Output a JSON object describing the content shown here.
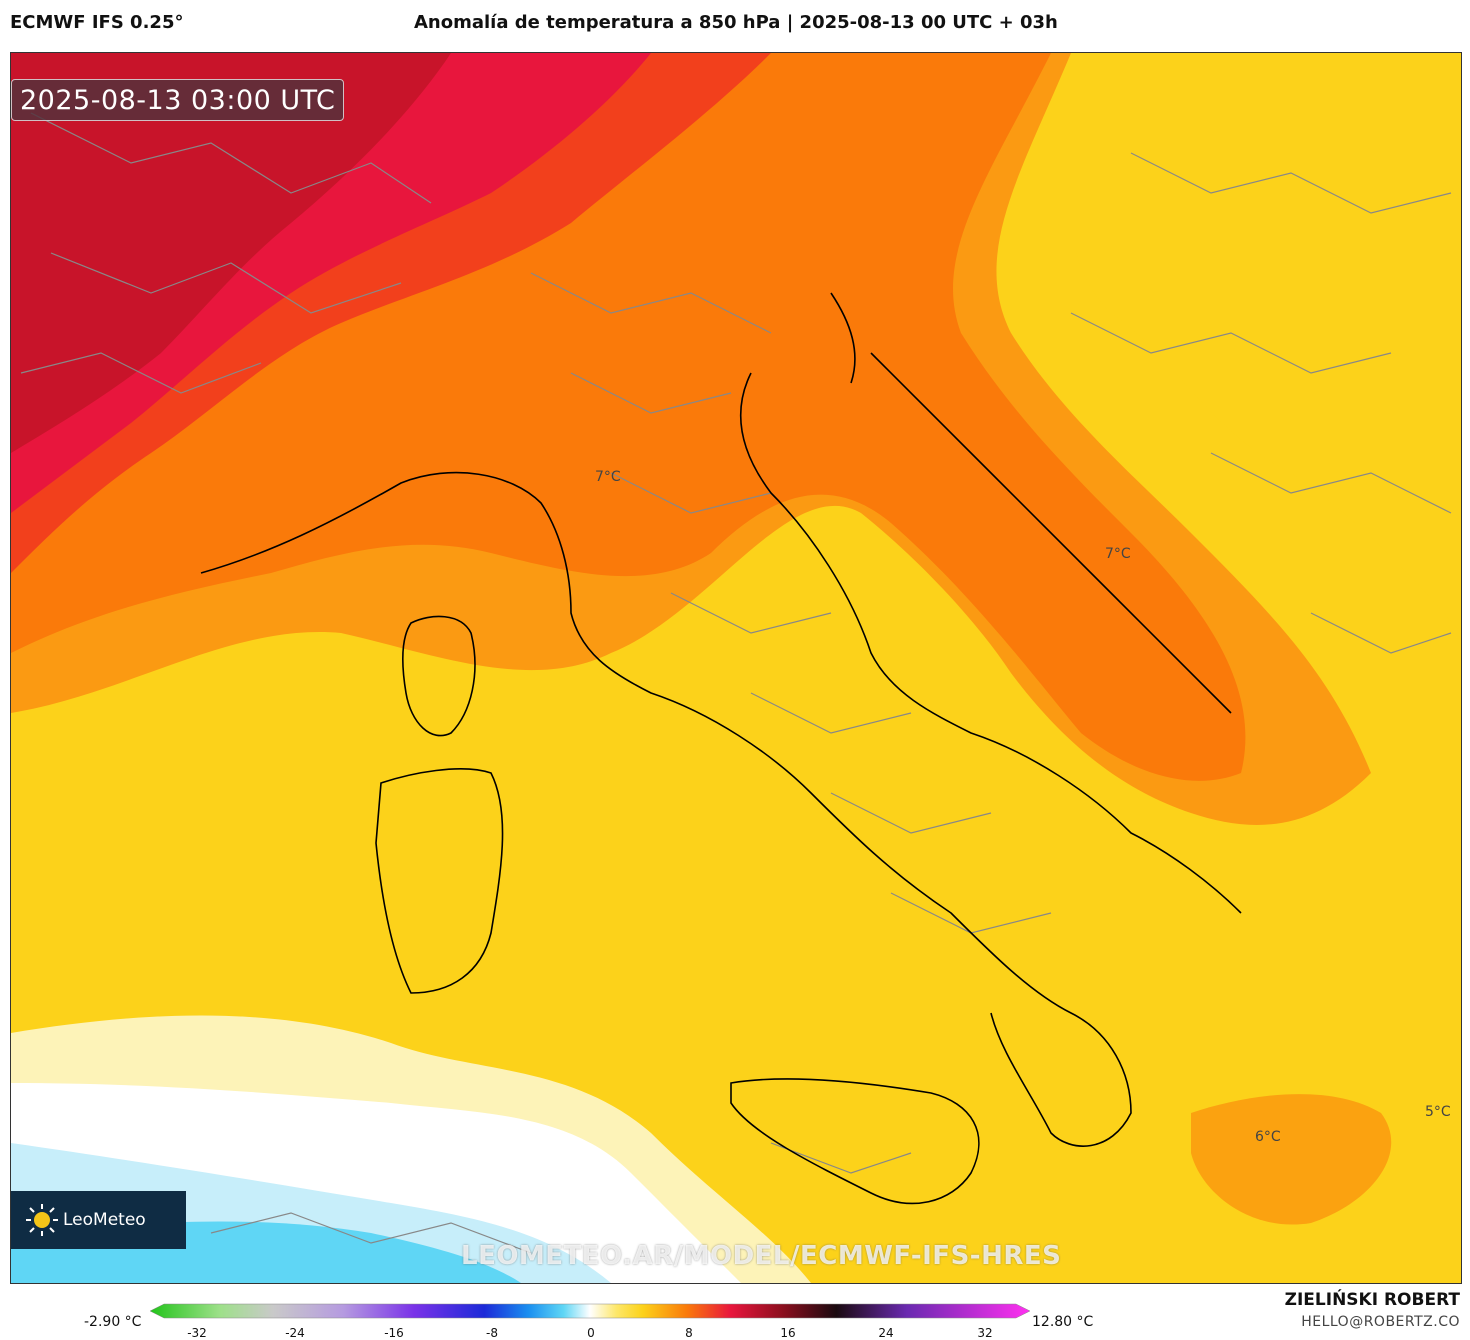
{
  "header": {
    "model_name": "ECMWF IFS 0.25°",
    "title": "Anomalía de temperatura a 850 hPa | 2025-08-13 00 UTC + 03h"
  },
  "map": {
    "timestamp": "2025-08-13 03:00 UTC",
    "contour_labels": [
      "7°C",
      "7°C",
      "6°C",
      "5°C"
    ],
    "logo_text": "LeoMeteo",
    "watermark": "LEOMETEO.AR/MODEL/ECMWF-IFS-HRES",
    "colors": {
      "deep_red": "#c8142a",
      "red": "#e8163d",
      "red_orange": "#f2401c",
      "orange": "#fa7a0a",
      "light_orange": "#fb9a12",
      "amber": "#f9b81a",
      "yellow": "#fcd21a",
      "light_yellow": "#fde76a",
      "pale_yellow": "#fdf3b8",
      "white": "#ffffff",
      "light_blue": "#c7eefa",
      "cyan": "#5fd6f5",
      "border_region": "#888888",
      "coastline": "#000000"
    }
  },
  "colorbar": {
    "min_label": "-2.90 °C",
    "max_label": "12.80 °C",
    "ticks": [
      "-32",
      "-24",
      "-16",
      "-8",
      "0",
      "8",
      "16",
      "24",
      "32"
    ],
    "colors": [
      "#22c41a",
      "#9ee08a",
      "#c9c9c9",
      "#b59ae0",
      "#7a32e8",
      "#1c2ad8",
      "#1a8ff0",
      "#5fd6f5",
      "#ffffff",
      "#fde76a",
      "#fcd21a",
      "#fa7a0a",
      "#e8163d",
      "#8a0f1e",
      "#1a0a10",
      "#6a2ab0",
      "#ff30f0"
    ]
  },
  "footer": {
    "author": "ZIELIŃSKI ROBERT",
    "email": "HELLO@ROBERTZ.CO"
  }
}
